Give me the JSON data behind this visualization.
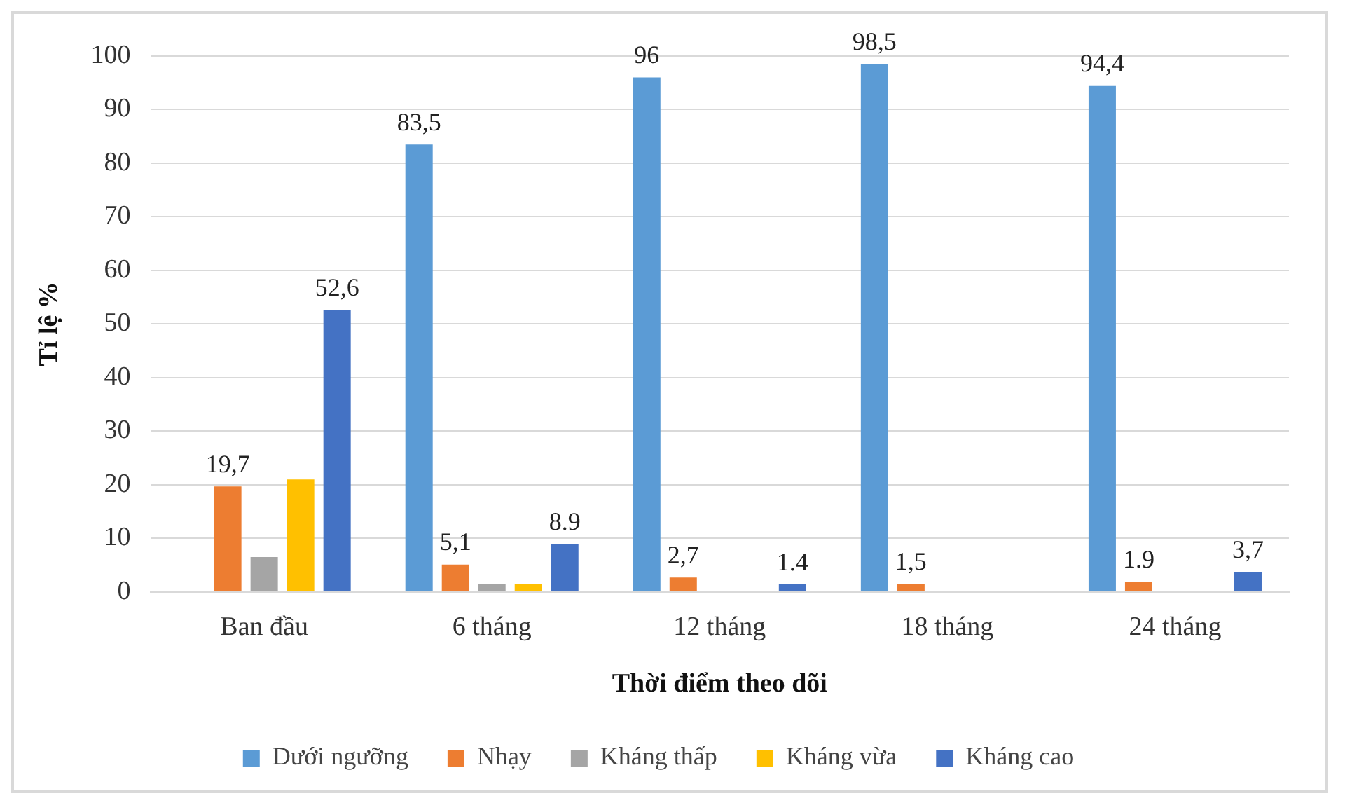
{
  "chart_data": {
    "type": "bar",
    "xlabel": "Thời điểm theo dõi",
    "ylabel": "Tỉ lệ %",
    "categories": [
      "Ban đầu",
      "6 tháng",
      "12 tháng",
      "18 tháng",
      "24 tháng"
    ],
    "series": [
      {
        "name": "Dưới ngưỡng",
        "color": "#5b9bd5",
        "values": [
          null,
          83.5,
          96,
          98.5,
          94.4
        ],
        "value_labels": [
          null,
          "83,5",
          "96",
          "98,5",
          "94,4"
        ]
      },
      {
        "name": "Nhạy",
        "color": "#ed7d31",
        "values": [
          19.7,
          5.1,
          2.7,
          1.5,
          1.9
        ],
        "value_labels": [
          "19,7",
          "5,1",
          "2,7",
          "1,5",
          "1.9"
        ]
      },
      {
        "name": "Kháng thấp",
        "color": "#a5a5a5",
        "values": [
          6.5,
          1.5,
          null,
          null,
          null
        ]
      },
      {
        "name": "Kháng vừa",
        "color": "#ffc000",
        "values": [
          21,
          1.5,
          null,
          null,
          null
        ]
      },
      {
        "name": "Kháng cao",
        "color": "#4472c4",
        "values": [
          52.6,
          8.9,
          1.4,
          null,
          3.7
        ],
        "value_labels": [
          "52,6",
          "8.9",
          "1.4",
          null,
          "3,7"
        ]
      }
    ],
    "ylim": [
      0,
      100
    ],
    "yticks": [
      0,
      10,
      20,
      30,
      40,
      50,
      60,
      70,
      80,
      90,
      100
    ],
    "grid": "y",
    "legend": "bottom"
  }
}
